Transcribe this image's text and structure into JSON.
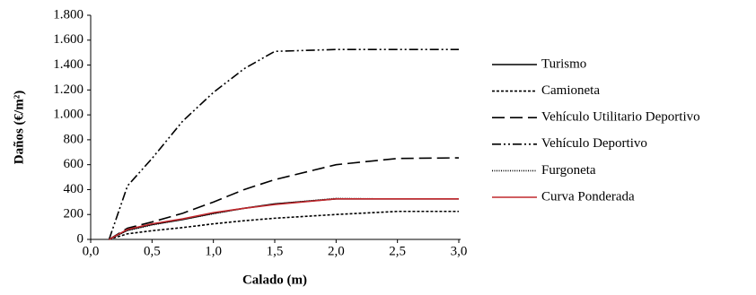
{
  "chart_data": {
    "type": "line",
    "x_label": "Calado (m)",
    "y_label": "Daños (€/m²)",
    "x": [
      0.15,
      0.3,
      0.5,
      0.75,
      1.0,
      1.25,
      1.5,
      2.0,
      2.5,
      3.0
    ],
    "series": [
      {
        "name": "Turismo",
        "color": "#000000",
        "dash": "none",
        "values": [
          0,
          75,
          120,
          160,
          210,
          250,
          285,
          325,
          325,
          325
        ]
      },
      {
        "name": "Camioneta",
        "color": "#000000",
        "dash": "3,2",
        "values": [
          0,
          45,
          70,
          95,
          125,
          150,
          170,
          200,
          225,
          225
        ]
      },
      {
        "name": "Vehículo Utilitario Deportivo",
        "color": "#000000",
        "dash": "14,6",
        "values": [
          0,
          90,
          140,
          210,
          300,
          400,
          480,
          600,
          650,
          655
        ]
      },
      {
        "name": "Vehículo Deportivo",
        "color": "#000000",
        "dash": "10,3,2,3,2,3",
        "values": [
          0,
          430,
          650,
          950,
          1180,
          1370,
          1510,
          1525,
          1525,
          1525
        ]
      },
      {
        "name": "Furgoneta",
        "color": "#000000",
        "dash": "1,1.5",
        "values": [
          0,
          70,
          115,
          160,
          205,
          250,
          285,
          330,
          325,
          325
        ]
      },
      {
        "name": "Curva Ponderada",
        "color": "#c0282d",
        "dash": "none",
        "values": [
          0,
          80,
          125,
          165,
          215,
          250,
          280,
          325,
          325,
          325
        ]
      }
    ],
    "xlim": [
      0,
      3.0
    ],
    "xticks": [
      {
        "value": 0,
        "label": "0,0"
      },
      {
        "value": 0.5,
        "label": "0,5"
      },
      {
        "value": 1.0,
        "label": "1,0"
      },
      {
        "value": 1.5,
        "label": "1,5"
      },
      {
        "value": 2.0,
        "label": "2,0"
      },
      {
        "value": 2.5,
        "label": "2,5"
      },
      {
        "value": 3.0,
        "label": "3,0"
      }
    ],
    "ylim": [
      0,
      1800
    ],
    "yticks": [
      0,
      200,
      400,
      600,
      800,
      {
        "value": 1000,
        "label": "1.000"
      },
      {
        "value": 1200,
        "label": "1.200"
      },
      {
        "value": 1400,
        "label": "1.400"
      },
      {
        "value": 1600,
        "label": "1.600"
      },
      {
        "value": 1800,
        "label": "1.800"
      }
    ],
    "legend": "right"
  }
}
